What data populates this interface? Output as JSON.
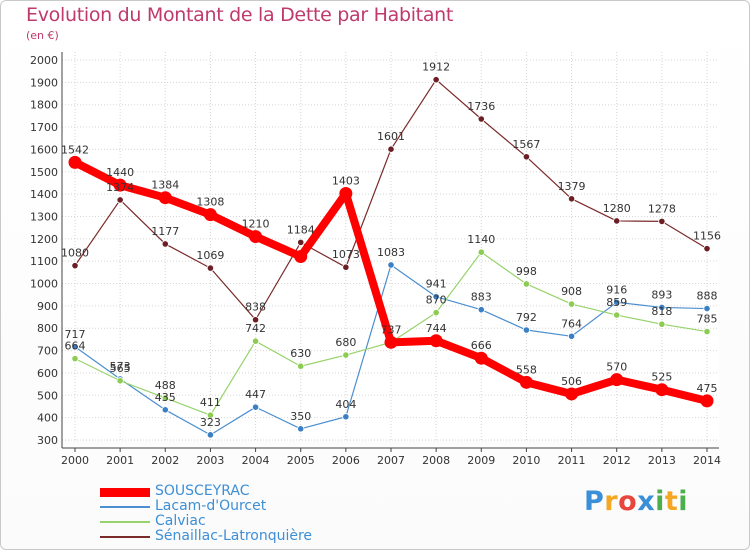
{
  "header": {
    "title": "Evolution du Montant de la Dette par Habitant",
    "subtitle": "(en €)"
  },
  "logo": {
    "text": "Proxiti",
    "colors": [
      "#3a8fd8",
      "#f5a623",
      "#e8453c",
      "#3a8fd8",
      "#4cae4c",
      "#f5a623",
      "#4cae4c"
    ]
  },
  "chart_data": {
    "type": "line",
    "title": "Evolution du Montant de la Dette par Habitant",
    "subtitle": "(en €)",
    "xlabel": "",
    "ylabel": "",
    "x": [
      "2000",
      "2001",
      "2002",
      "2003",
      "2004",
      "2005",
      "2006",
      "2007",
      "2008",
      "2009",
      "2010",
      "2011",
      "2012",
      "2013",
      "2014"
    ],
    "ylim": [
      300,
      2000
    ],
    "yticks": [
      "300",
      "400",
      "500",
      "600",
      "700",
      "800",
      "900",
      "1000",
      "1100",
      "1200",
      "1300",
      "1400",
      "1500",
      "1600",
      "1700",
      "1800",
      "1900",
      "2000"
    ],
    "grid": true,
    "legend_position": "bottom-left",
    "series": [
      {
        "name": "Sénaillac-Latronquière",
        "color": "#7b2a2a",
        "marker_fill": "#6b1f24",
        "values": [
          1080,
          1374,
          1177,
          1069,
          838,
          1184,
          1073,
          1601,
          1912,
          1736,
          1567,
          1379,
          1280,
          1278,
          1156
        ],
        "labels": [
          "1080",
          "1374",
          "1177",
          "1069",
          "838",
          "1184",
          "1073",
          "1601",
          "1912",
          "1736",
          "1567",
          "1379",
          "1280",
          "1278",
          "1156"
        ]
      },
      {
        "name": "Lacam-d'Ourcet",
        "color": "#4b8fd0",
        "marker_fill": "#3b7fc4",
        "values": [
          717,
          573,
          435,
          323,
          447,
          350,
          404,
          1083,
          941,
          883,
          792,
          764,
          916,
          893,
          888
        ],
        "labels": [
          "717",
          "573",
          "435",
          "323",
          "447",
          "350",
          "404",
          "1083",
          "941",
          "883",
          "792",
          "764",
          "916",
          "893",
          "888"
        ]
      },
      {
        "name": "Calviac",
        "color": "#97d36c",
        "marker_fill": "#8ccc52",
        "values": [
          664,
          565,
          488,
          411,
          742,
          630,
          680,
          737,
          870,
          1140,
          998,
          908,
          859,
          818,
          785
        ],
        "labels": [
          "664",
          "565",
          "488",
          "411",
          "742",
          "630",
          "680",
          "737",
          "870",
          "1140",
          "998",
          "908",
          "859",
          "818",
          "785"
        ]
      },
      {
        "name": "SOUSCEYRAC",
        "color": "#ff0000",
        "marker_fill": "#ff0000",
        "values": [
          1542,
          1440,
          1384,
          1308,
          1210,
          1121,
          1403,
          737,
          744,
          666,
          558,
          506,
          570,
          525,
          475
        ],
        "labels": [
          "1542",
          "1440",
          "1384",
          "1308",
          "1210",
          "",
          "1403",
          "",
          "744",
          "666",
          "558",
          "506",
          "570",
          "525",
          "475"
        ]
      }
    ],
    "legend": [
      "SOUSCEYRAC",
      "Lacam-d'Ourcet",
      "Calviac",
      "Sénaillac-Latronquière"
    ]
  }
}
